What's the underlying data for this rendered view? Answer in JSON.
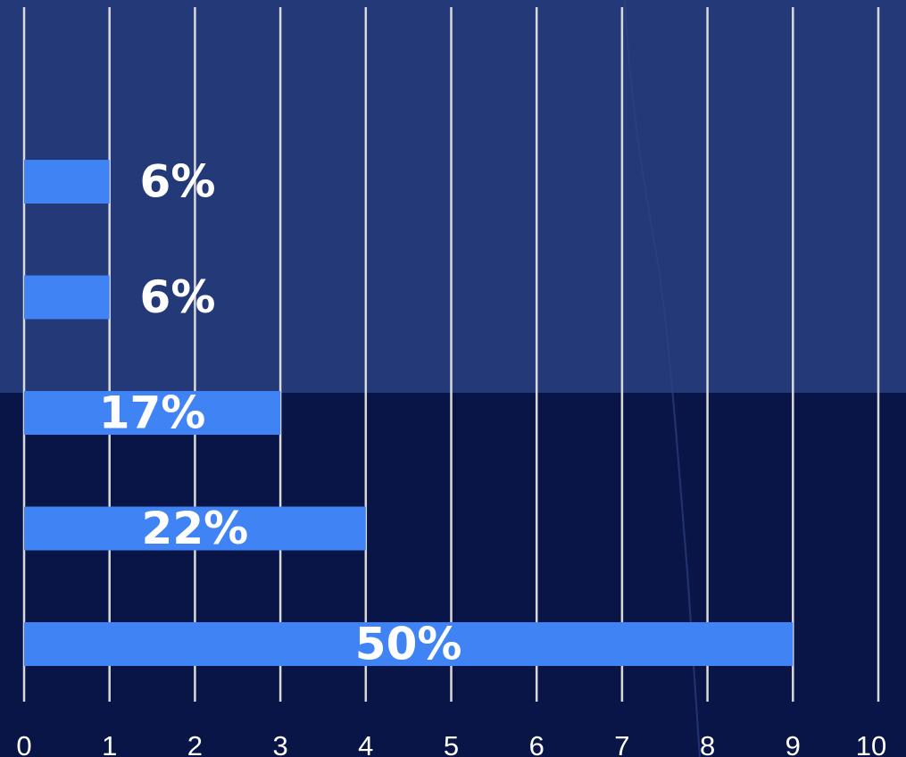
{
  "chart_data": {
    "type": "bar",
    "orientation": "horizontal",
    "values": [
      1,
      1,
      3,
      4,
      9
    ],
    "labels": [
      "6%",
      "6%",
      "17%",
      "22%",
      "50%"
    ],
    "xlim": [
      0,
      10
    ],
    "x_ticks": [
      "0",
      "1",
      "2",
      "3",
      "4",
      "5",
      "6",
      "7",
      "8",
      "9",
      "10"
    ],
    "grid": "vertical",
    "colors": {
      "bar": "#3f83f4",
      "grid": "#d9d9d9",
      "text": "#ffffff",
      "background_top": "#243a78",
      "background_bottom": "#091547"
    }
  }
}
